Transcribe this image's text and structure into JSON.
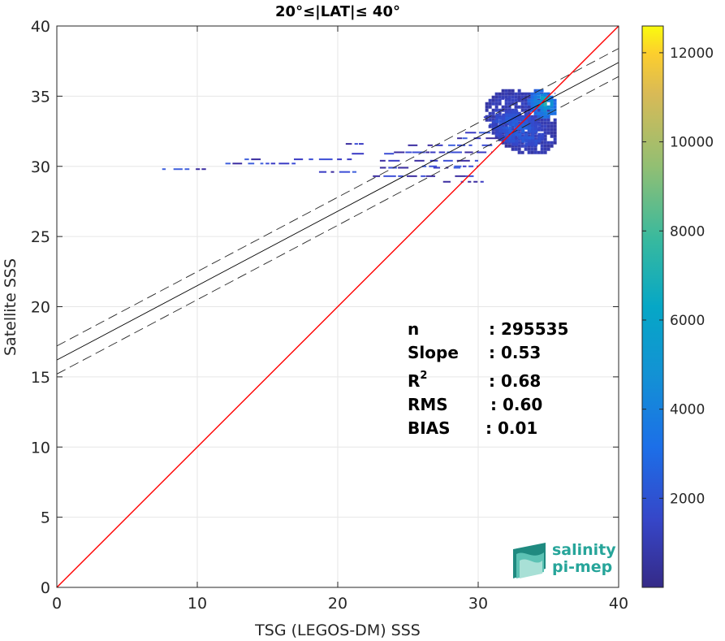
{
  "chart_data": {
    "type": "heatmap",
    "title": "20°≤|LAT|≤ 40°",
    "xlabel": "TSG (LEGOS-DM) SSS",
    "ylabel": "Satellite SSS",
    "xlim": [
      0,
      40
    ],
    "ylim": [
      0,
      40
    ],
    "x_ticks": [
      "0",
      "10",
      "20",
      "30",
      "40"
    ],
    "y_ticks": [
      "0",
      "5",
      "10",
      "15",
      "20",
      "25",
      "30",
      "35",
      "40"
    ],
    "grid": true,
    "colorbar": {
      "range": [
        0,
        12600
      ],
      "ticks": [
        "2000",
        "4000",
        "6000",
        "8000",
        "10000",
        "12000"
      ],
      "colormap": "parula"
    },
    "lines": {
      "identity": {
        "slope": 1,
        "intercept": 0,
        "color": "#ff0000"
      },
      "regression": {
        "slope": 0.53,
        "intercept": 16.2,
        "color": "#000000"
      },
      "confidence_upper": {
        "slope": 0.53,
        "intercept": 17.2,
        "style": "dashed"
      },
      "confidence_lower": {
        "slope": 0.53,
        "intercept": 15.2,
        "style": "dashed"
      }
    },
    "density_clusters": [
      {
        "x": [
          30.5,
          35.5
        ],
        "y": [
          31.0,
          35.5
        ],
        "level": 0.08
      },
      {
        "x": [
          31.0,
          34.5
        ],
        "y": [
          31.5,
          34.0
        ],
        "level": 0.18
      },
      {
        "x": [
          33.5,
          35.5
        ],
        "y": [
          33.5,
          35.5
        ],
        "level": 0.35
      },
      {
        "x": [
          34.2,
          35.2
        ],
        "y": [
          34.2,
          35.2
        ],
        "level": 0.6
      }
    ],
    "density_streaks": [
      {
        "x": [
          7.5,
          11
        ],
        "y": 29.8
      },
      {
        "x": [
          12,
          17
        ],
        "y": 30.2
      },
      {
        "x": [
          12.5,
          21
        ],
        "y": 30.5
      },
      {
        "x": [
          17,
          21.5
        ],
        "y": 29.6
      },
      {
        "x": [
          23,
          30
        ],
        "y": 30.4
      },
      {
        "x": [
          24,
          31
        ],
        "y": 31.0
      },
      {
        "x": [
          22.5,
          30
        ],
        "y": 29.3
      },
      {
        "x": [
          23,
          29
        ],
        "y": 29.9
      },
      {
        "x": [
          25,
          31
        ],
        "y": 31.5
      },
      {
        "x": [
          28.5,
          33.5
        ],
        "y": 32.0
      },
      {
        "x": [
          28,
          32
        ],
        "y": 32.4
      },
      {
        "x": [
          30,
          34
        ],
        "y": 33.0
      },
      {
        "x": [
          29.5,
          33
        ],
        "y": 33.5
      },
      {
        "x": [
          31,
          35
        ],
        "y": 34.2
      },
      {
        "x": [
          30.5,
          33.5
        ],
        "y": 34.8
      },
      {
        "x": [
          32,
          35.5
        ],
        "y": 35.2
      },
      {
        "x": [
          27.5,
          30.5
        ],
        "y": 28.9
      },
      {
        "x": [
          19.5,
          22
        ],
        "y": 31.6
      },
      {
        "x": [
          21,
          24
        ],
        "y": 30.9
      },
      {
        "x": [
          26,
          30
        ],
        "y": 30.0
      }
    ],
    "stats": [
      {
        "label": "n",
        "sup": "",
        "value": ": 295535"
      },
      {
        "label": "Slope",
        "sup": "",
        "value": ": 0.53"
      },
      {
        "label": "R",
        "sup": "2",
        "value": ": 0.68"
      },
      {
        "label": "RMS",
        "sup": "",
        "value": ": 0.60"
      },
      {
        "label": "BIAS",
        "sup": "",
        "value": ": 0.01"
      }
    ]
  },
  "logo": {
    "line1": "salinity",
    "line2": "pi-mep",
    "color": "#27a59a"
  }
}
